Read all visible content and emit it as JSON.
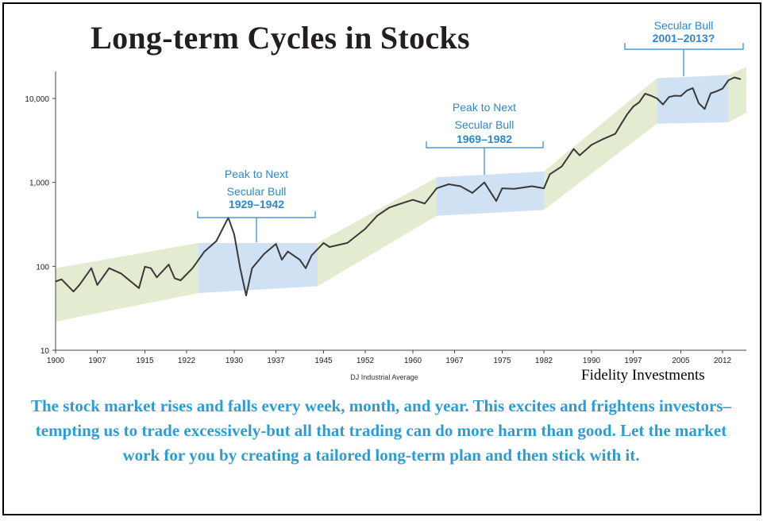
{
  "chart_data": {
    "type": "line",
    "title": "Long-term Cycles in Stocks",
    "xlabel": "DJ Industrial Average",
    "ylabel": "",
    "yscale": "log",
    "xlim": [
      1900,
      2016
    ],
    "ylim": [
      10,
      25000
    ],
    "x_ticks": [
      "1900",
      "1907",
      "1915",
      "1922",
      "1930",
      "1937",
      "1945",
      "1952",
      "1960",
      "1967",
      "1975",
      "1982",
      "1990",
      "1997",
      "2005",
      "2012"
    ],
    "y_ticks": [
      {
        "value": 10,
        "label": "10"
      },
      {
        "value": 100,
        "label": "100"
      },
      {
        "value": 1000,
        "label": "1,000"
      },
      {
        "value": 10000,
        "label": "10,000"
      }
    ],
    "series": [
      {
        "x": [
          1900,
          1901,
          1903,
          1904,
          1906,
          1907,
          1909,
          1911,
          1914,
          1915,
          1916,
          1917,
          1919,
          1920,
          1921,
          1923,
          1925,
          1927,
          1929,
          1930,
          1931,
          1932,
          1933,
          1935,
          1937,
          1938,
          1939,
          1941,
          1942,
          1943,
          1945,
          1946,
          1949,
          1952,
          1954,
          1956,
          1958,
          1960,
          1962,
          1964,
          1966,
          1968,
          1970,
          1972,
          1974,
          1975,
          1977,
          1980,
          1982,
          1983,
          1985,
          1987,
          1988,
          1990,
          1992,
          1994,
          1995,
          1996,
          1997,
          1998,
          1999,
          2000,
          2001,
          2002,
          2003,
          2004,
          2005,
          2006,
          2007,
          2008,
          2009,
          2010,
          2011,
          2012,
          2013,
          2014,
          2015
        ],
        "y": [
          66,
          70,
          50,
          60,
          95,
          60,
          95,
          82,
          55,
          99,
          95,
          74,
          105,
          72,
          68,
          95,
          150,
          200,
          380,
          240,
          95,
          45,
          95,
          140,
          185,
          120,
          150,
          120,
          95,
          135,
          190,
          170,
          190,
          280,
          400,
          500,
          560,
          620,
          560,
          850,
          950,
          900,
          750,
          1000,
          600,
          850,
          840,
          900,
          850,
          1250,
          1550,
          2500,
          2100,
          2800,
          3300,
          3800,
          5000,
          6500,
          8000,
          9000,
          11400,
          10800,
          10000,
          8500,
          10400,
          10800,
          10700,
          12400,
          13300,
          8800,
          7500,
          11500,
          12200,
          13100,
          16500,
          17800,
          17000
        ]
      }
    ],
    "bands": [
      {
        "x": [
          1900,
          1924
        ],
        "y_low": [
          22,
          48
        ],
        "y_high": [
          95,
          190
        ],
        "color": "#e3ecd0"
      },
      {
        "x": [
          1944,
          1964
        ],
        "y_low": [
          58,
          400
        ],
        "y_high": [
          190,
          1150
        ],
        "color": "#e3ecd0"
      },
      {
        "x": [
          1982,
          2001
        ],
        "y_low": [
          470,
          5000
        ],
        "y_high": [
          1350,
          17500
        ],
        "color": "#e3ecd0"
      },
      {
        "x": [
          2013,
          2016
        ],
        "y_low": [
          5200,
          6800
        ],
        "y_high": [
          19000,
          24000
        ],
        "color": "#e3ecd0"
      }
    ],
    "boxes": [
      {
        "x": [
          1924,
          1944
        ],
        "y_low": [
          48,
          58
        ],
        "y_high": [
          190,
          190
        ],
        "color": "#cfe1f3"
      },
      {
        "x": [
          1964,
          1982
        ],
        "y_low": [
          400,
          470
        ],
        "y_high": [
          1150,
          1350
        ],
        "color": "#cfe1f3"
      },
      {
        "x": [
          2001,
          2013
        ],
        "y_low": [
          5000,
          5200
        ],
        "y_high": [
          17500,
          19000
        ],
        "color": "#cfe1f3"
      }
    ],
    "annotations": [
      {
        "line1": "Peak to Next",
        "line2": "Secular Bull",
        "line3": "1929–1942"
      },
      {
        "line1": "Peak to Next",
        "line2": "Secular Bull",
        "line3": "1969–1982"
      },
      {
        "line1": "Secular Bull",
        "line2": "",
        "line3": "2001–2013?"
      }
    ],
    "colors": {
      "line": "#3a3a3a",
      "annotation": "#2e87c8",
      "band": "#e3ecd0",
      "box": "#cfe1f3",
      "axis": "#444444"
    }
  },
  "source": "Fidelity Investments",
  "caption": "The stock market rises and falls every week, month, and year. This excites and frightens investors–tempting us to trade excessively-but all that trading can do more harm than good. Let the market work for you by creating a tailored long-term plan and then stick with it."
}
